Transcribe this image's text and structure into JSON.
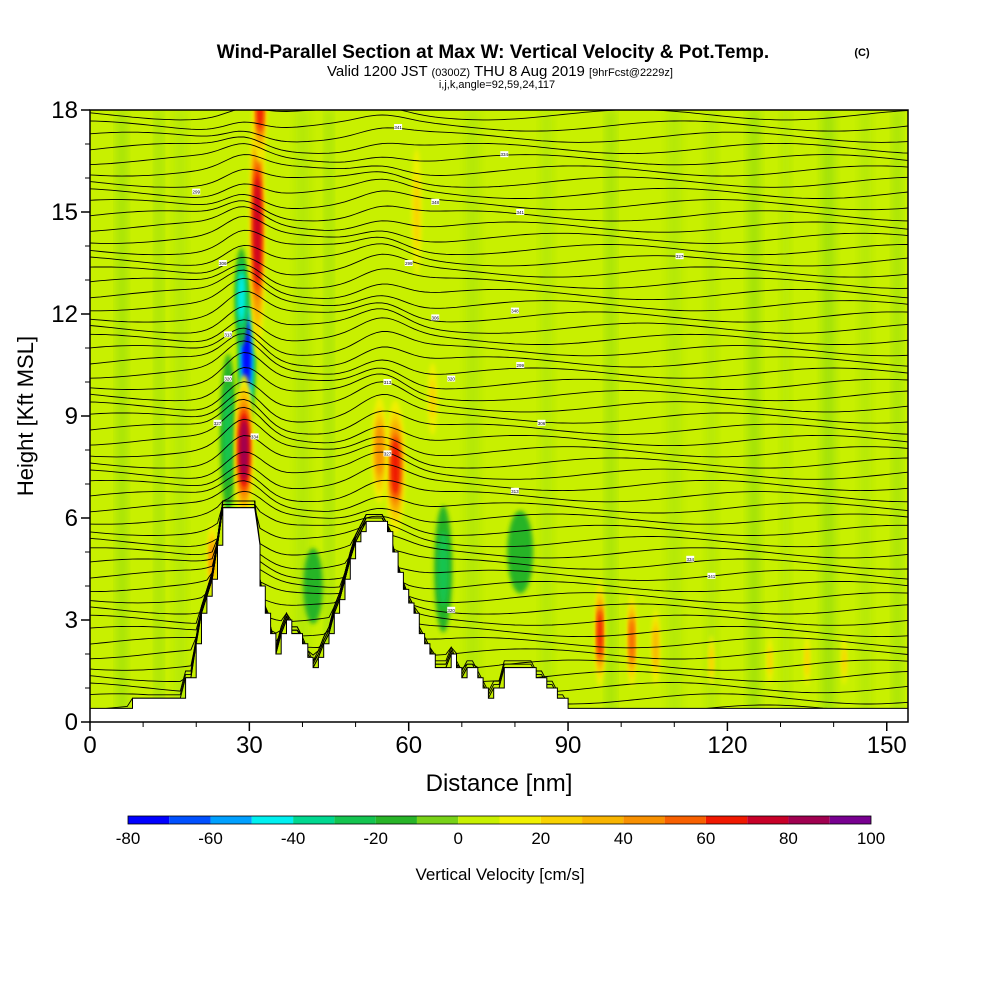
{
  "chart_data": {
    "type": "heatmap",
    "title": {
      "main": "Wind-Parallel Section at Max W: Vertical Velocity & Pot.Temp.",
      "copyright": "(C)",
      "valid_prefix": "Valid 1200 JST",
      "valid_z": "(0300Z)",
      "valid_date": "THU 8 Aug 2019",
      "forecast": "[9hrFcst@2229z]",
      "params": "i,j,k,angle=92,59,24,117"
    },
    "xlabel": "Distance [nm]",
    "ylabel": "Height [Kft MSL]",
    "xlim": [
      0,
      154
    ],
    "ylim": [
      0,
      18
    ],
    "x_ticks": [
      "0",
      "30",
      "60",
      "90",
      "120",
      "150"
    ],
    "x_tick_values": [
      0,
      30,
      60,
      90,
      120,
      150
    ],
    "y_ticks": [
      "0",
      "3",
      "6",
      "9",
      "12",
      "15",
      "18"
    ],
    "y_tick_values": [
      0,
      3,
      6,
      9,
      12,
      15,
      18
    ],
    "colorbar": {
      "label": "Vertical Velocity [cm/s]",
      "levels": [
        -80,
        -70,
        -60,
        -50,
        -40,
        -30,
        -20,
        -10,
        0,
        10,
        20,
        30,
        40,
        50,
        60,
        70,
        80,
        90,
        100
      ],
      "tick_labels": [
        "-80",
        "-60",
        "-40",
        "-20",
        "0",
        "20",
        "40",
        "60",
        "80",
        "100"
      ],
      "tick_values": [
        -80,
        -60,
        -40,
        -20,
        0,
        20,
        40,
        60,
        80,
        100
      ],
      "colors": [
        "#0000ff",
        "#0050ff",
        "#00a0ff",
        "#00f0f0",
        "#00d890",
        "#14c450",
        "#28b428",
        "#78d218",
        "#c8f000",
        "#f0f000",
        "#f8d200",
        "#f8b400",
        "#f89000",
        "#f86000",
        "#f01800",
        "#c80028",
        "#a00050",
        "#780090"
      ]
    },
    "terrain": [
      [
        0,
        0.4
      ],
      [
        8,
        0.4
      ],
      [
        8,
        0.7
      ],
      [
        18,
        0.7
      ],
      [
        18,
        1.3
      ],
      [
        20,
        1.3
      ],
      [
        20,
        2.3
      ],
      [
        21,
        2.3
      ],
      [
        21,
        3.2
      ],
      [
        22,
        3.2
      ],
      [
        22,
        3.7
      ],
      [
        23,
        3.7
      ],
      [
        23,
        4.2
      ],
      [
        24,
        4.2
      ],
      [
        24,
        5.2
      ],
      [
        25,
        5.2
      ],
      [
        25,
        6.3
      ],
      [
        28,
        6.3
      ],
      [
        29,
        6.3
      ],
      [
        31,
        6.3
      ],
      [
        32,
        5.2
      ],
      [
        32,
        4.0
      ],
      [
        33,
        4.0
      ],
      [
        33,
        3.2
      ],
      [
        34,
        3.2
      ],
      [
        34,
        2.6
      ],
      [
        35,
        2.6
      ],
      [
        35,
        2.0
      ],
      [
        36,
        2.0
      ],
      [
        36,
        2.6
      ],
      [
        37,
        2.6
      ],
      [
        37,
        3.0
      ],
      [
        38,
        3.0
      ],
      [
        38,
        2.6
      ],
      [
        39,
        2.6
      ],
      [
        39,
        2.6
      ],
      [
        40,
        2.6
      ],
      [
        40,
        2.3
      ],
      [
        41,
        2.3
      ],
      [
        41,
        1.9
      ],
      [
        42,
        1.9
      ],
      [
        42,
        1.6
      ],
      [
        43,
        1.6
      ],
      [
        43,
        1.9
      ],
      [
        44,
        1.9
      ],
      [
        44,
        2.3
      ],
      [
        45,
        2.3
      ],
      [
        45,
        2.6
      ],
      [
        46,
        2.6
      ],
      [
        46,
        3.2
      ],
      [
        47,
        3.2
      ],
      [
        47,
        3.6
      ],
      [
        48,
        3.6
      ],
      [
        48,
        4.2
      ],
      [
        49,
        4.2
      ],
      [
        49,
        4.8
      ],
      [
        50,
        4.8
      ],
      [
        50,
        5.3
      ],
      [
        51,
        5.3
      ],
      [
        51,
        5.6
      ],
      [
        52,
        5.6
      ],
      [
        52,
        5.9
      ],
      [
        56,
        5.9
      ],
      [
        56,
        5.6
      ],
      [
        57,
        5.6
      ],
      [
        57,
        5.0
      ],
      [
        58,
        5.0
      ],
      [
        58,
        4.4
      ],
      [
        59,
        4.4
      ],
      [
        59,
        3.9
      ],
      [
        60,
        3.9
      ],
      [
        60,
        3.5
      ],
      [
        61,
        3.5
      ],
      [
        61,
        3.2
      ],
      [
        62,
        3.2
      ],
      [
        62,
        2.6
      ],
      [
        63,
        2.6
      ],
      [
        63,
        2.3
      ],
      [
        64,
        2.3
      ],
      [
        64,
        2.0
      ],
      [
        65,
        2.0
      ],
      [
        65,
        1.6
      ],
      [
        68,
        1.6
      ],
      [
        68,
        2.0
      ],
      [
        69,
        2.0
      ],
      [
        69,
        1.6
      ],
      [
        70,
        1.6
      ],
      [
        70,
        1.3
      ],
      [
        71,
        1.3
      ],
      [
        71,
        1.6
      ],
      [
        73,
        1.6
      ],
      [
        73,
        1.3
      ],
      [
        74,
        1.3
      ],
      [
        74,
        1.0
      ],
      [
        75,
        1.0
      ],
      [
        75,
        0.7
      ],
      [
        76,
        0.7
      ],
      [
        76,
        1.0
      ],
      [
        78,
        1.0
      ],
      [
        78,
        1.6
      ],
      [
        80,
        1.6
      ],
      [
        80,
        1.6
      ],
      [
        84,
        1.6
      ],
      [
        84,
        1.3
      ],
      [
        86,
        1.3
      ],
      [
        86,
        1.0
      ],
      [
        88,
        1.0
      ],
      [
        88,
        0.7
      ],
      [
        90,
        0.7
      ],
      [
        90,
        0.4
      ],
      [
        154,
        0.4
      ]
    ],
    "updrafts": [
      {
        "x": 29.0,
        "z": 8.0,
        "value": 85,
        "sx": 1.3,
        "sz": 1.6
      },
      {
        "x": 31.5,
        "z": 14.5,
        "value": 75,
        "sx": 1.1,
        "sz": 2.8
      },
      {
        "x": 57.5,
        "z": 7.5,
        "value": 65,
        "sx": 1.4,
        "sz": 1.5
      },
      {
        "x": 54.5,
        "z": 8.0,
        "value": 45,
        "sx": 1.2,
        "sz": 1.3
      },
      {
        "x": 96.0,
        "z": 2.6,
        "value": 65,
        "sx": 0.7,
        "sz": 1.2
      },
      {
        "x": 102.0,
        "z": 2.4,
        "value": 55,
        "sx": 0.7,
        "sz": 1.1
      },
      {
        "x": 106.5,
        "z": 2.2,
        "value": 35,
        "sx": 0.7,
        "sz": 1.0
      },
      {
        "x": 23.0,
        "z": 4.8,
        "value": 40,
        "sx": 0.8,
        "sz": 0.9
      },
      {
        "x": 32.0,
        "z": 18.0,
        "value": 60,
        "sx": 1.0,
        "sz": 1.2
      },
      {
        "x": 61.5,
        "z": 15.0,
        "value": 22,
        "sx": 1.0,
        "sz": 2.0
      },
      {
        "x": 64.5,
        "z": 9.5,
        "value": 20,
        "sx": 1.0,
        "sz": 1.2
      },
      {
        "x": 117.0,
        "z": 1.8,
        "value": 22,
        "sx": 0.6,
        "sz": 0.8
      },
      {
        "x": 128.0,
        "z": 1.8,
        "value": 20,
        "sx": 0.6,
        "sz": 0.8
      },
      {
        "x": 135.0,
        "z": 1.8,
        "value": 22,
        "sx": 0.6,
        "sz": 0.8
      },
      {
        "x": 142.0,
        "z": 1.8,
        "value": 20,
        "sx": 0.6,
        "sz": 0.8
      }
    ],
    "downdrafts": [
      {
        "x": 29.5,
        "z": 10.8,
        "value": -75,
        "sx": 1.2,
        "sz": 1.7
      },
      {
        "x": 28.5,
        "z": 12.5,
        "value": -45,
        "sx": 1.0,
        "sz": 1.2
      },
      {
        "x": 66.5,
        "z": 4.5,
        "value": -22,
        "sx": 1.8,
        "sz": 2.0
      },
      {
        "x": 26.0,
        "z": 8.5,
        "value": -22,
        "sx": 1.6,
        "sz": 2.5
      },
      {
        "x": 42.0,
        "z": 4.0,
        "value": -15,
        "sx": 2.5,
        "sz": 1.5
      },
      {
        "x": 81.0,
        "z": 5.0,
        "value": -12,
        "sx": 4.0,
        "sz": 2.0
      }
    ],
    "theta_labels": [
      "299",
      "300",
      "301",
      "302",
      "303",
      "304",
      "305",
      "306",
      "307",
      "308",
      "309",
      "310",
      "311",
      "312",
      "313",
      "314",
      "315",
      "316",
      "317",
      "318",
      "319",
      "320",
      "321",
      "322",
      "323",
      "324",
      "325",
      "326",
      "327",
      "328",
      "329",
      "330",
      "331",
      "332",
      "333",
      "334",
      "335",
      "336",
      "337",
      "338",
      "339",
      "340",
      "341",
      "342",
      "343",
      "344",
      "345",
      "346",
      "347",
      "348",
      "349",
      "350",
      "351",
      "352",
      "353",
      "354"
    ],
    "grid": false
  }
}
